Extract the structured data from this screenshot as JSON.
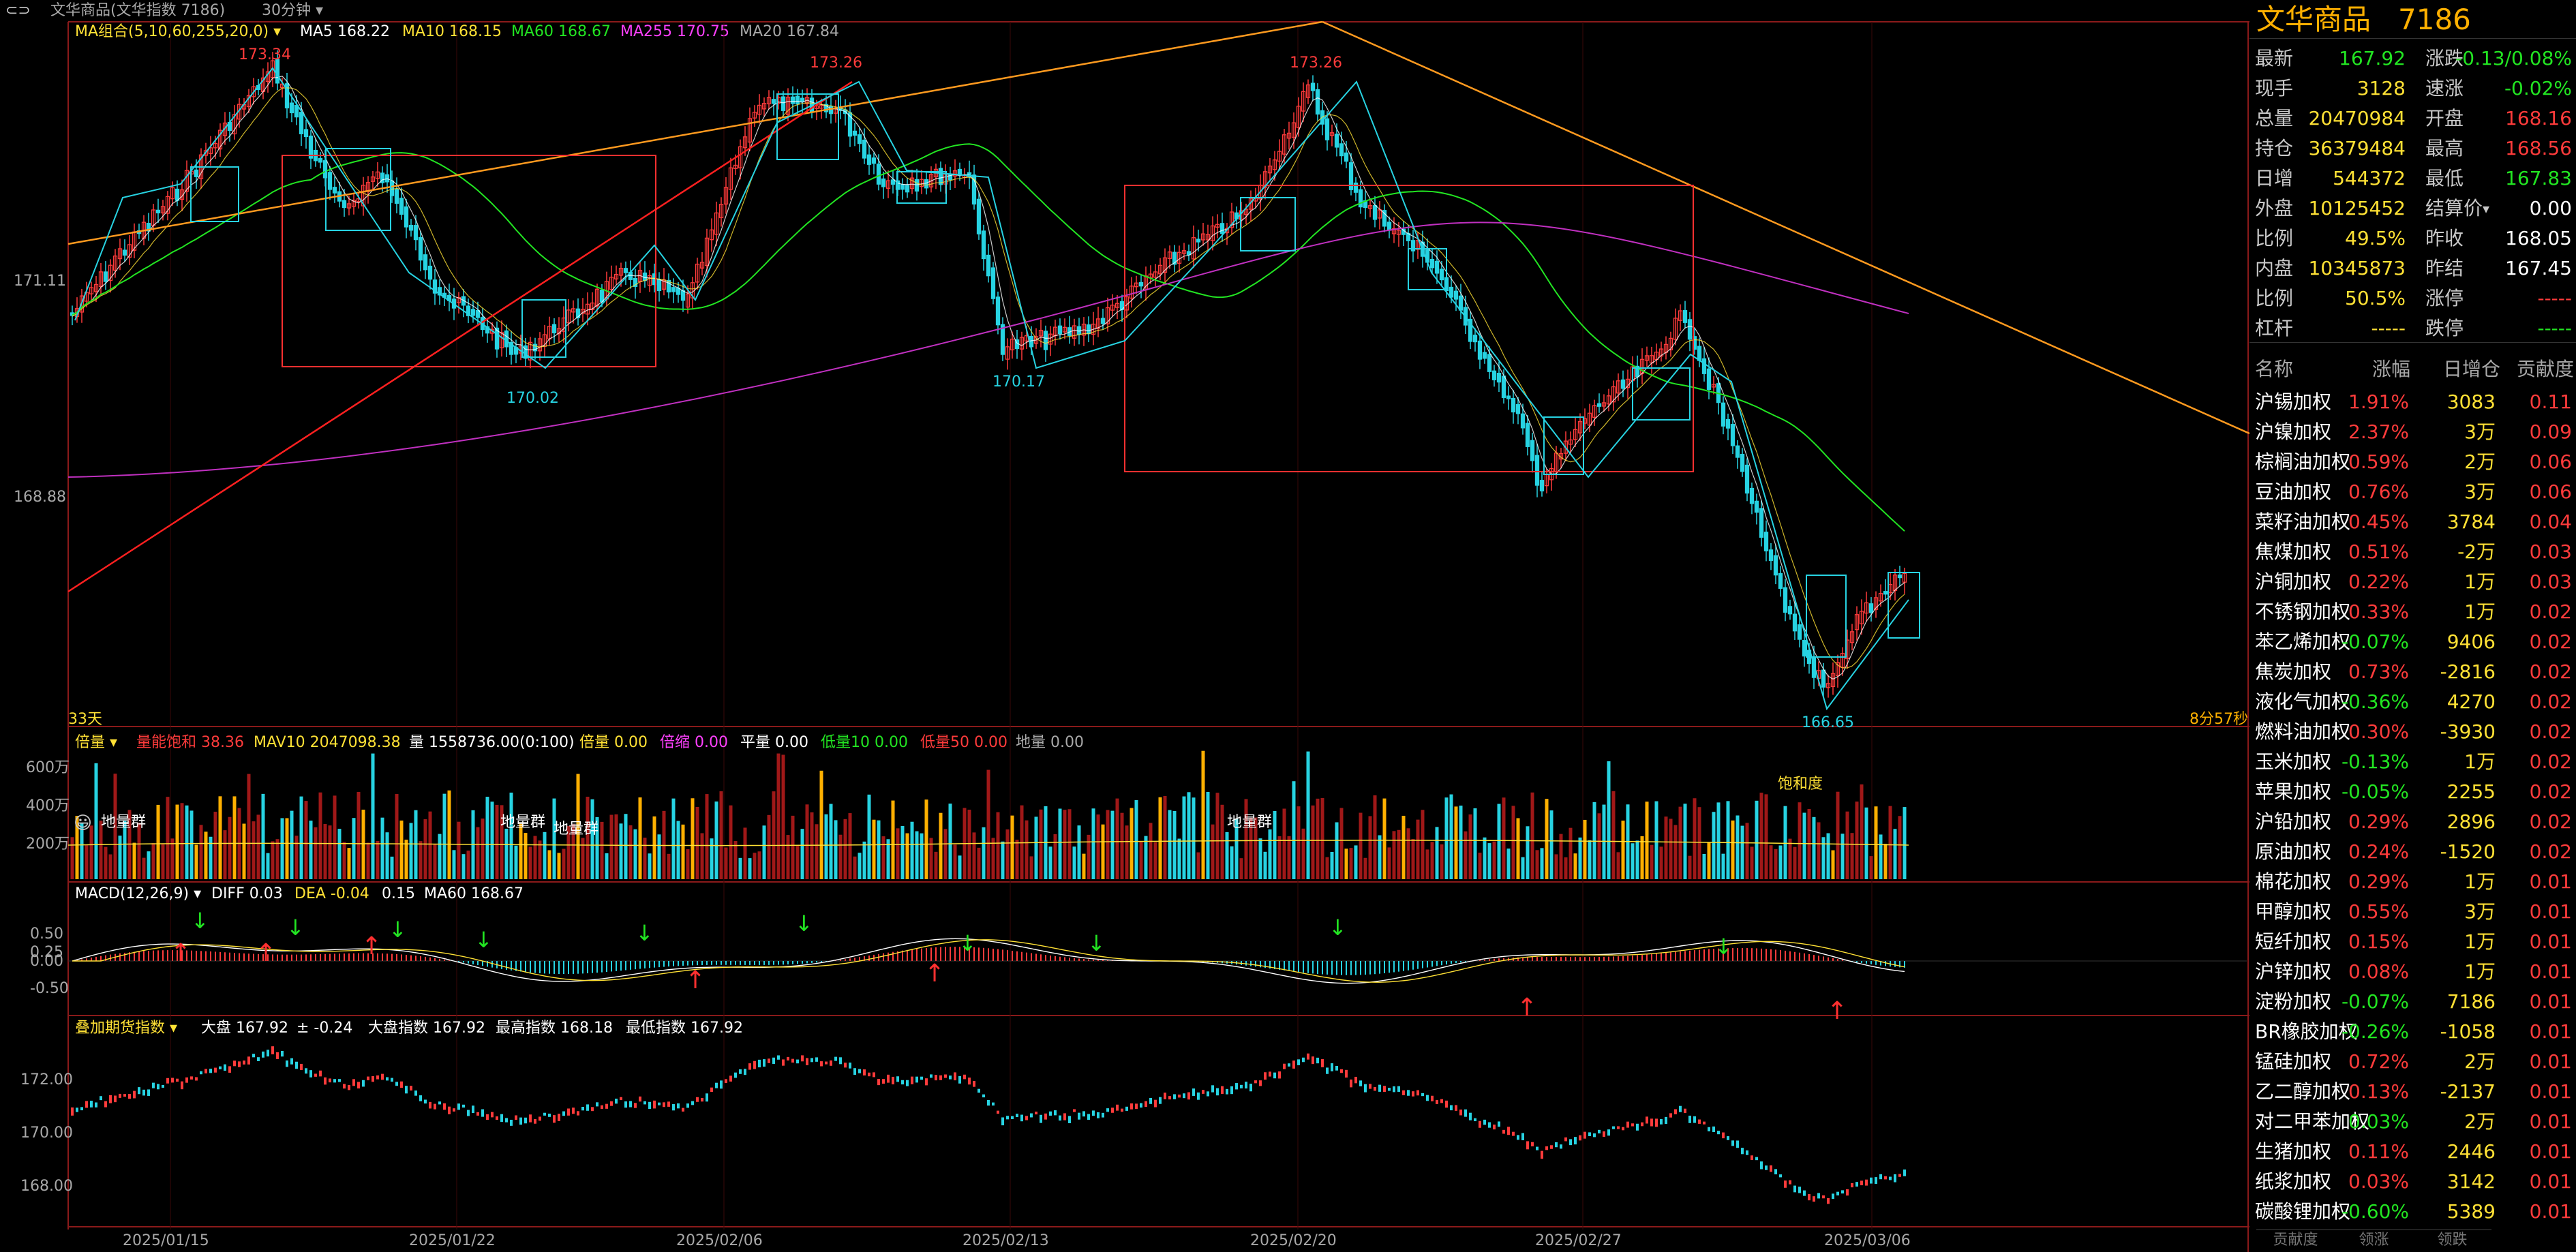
{
  "topbar": {
    "title": "文华商品(文华指数 7186)",
    "period": "30分钟",
    "ma_legend": {
      "label": "MA组合(5,10,60,255,20,0)",
      "ma5": "MA5 168.22",
      "ma10": "MA10 168.15",
      "ma60": "MA60 168.67",
      "ma255": "MA255 170.75",
      "ma20": "MA20 167.84"
    }
  },
  "main_chart": {
    "y_labels": [
      "171.11",
      "168.88"
    ],
    "annotations": {
      "h1": "173.34",
      "h2": "173.26",
      "h3": "173.26",
      "l1": "170.02",
      "l2": "170.17",
      "l3": "166.65"
    },
    "days_label": "33天",
    "countdown": "8分57秒"
  },
  "volume_panel": {
    "legend": {
      "name": "倍量",
      "vol_sat": "量能饱和 38.36",
      "mav10": "MAV10 2047098.38",
      "vol": "量 1558736.00(0:100)",
      "beiliang": "倍量 0.00",
      "beisuo": "倍缩 0.00",
      "pingliang": "平量 0.00",
      "dl10": "低量10 0.00",
      "dl50": "低量50 0.00",
      "diliang": "地量 0.00"
    },
    "y_labels": [
      "600万",
      "400万",
      "200万"
    ],
    "markers": [
      "地量群",
      "地量群",
      "地量群",
      "地量群",
      "饱和度"
    ]
  },
  "macd_panel": {
    "legend": {
      "name": "MACD(12,26,9)",
      "diff": "DIFF 0.03",
      "dea": "DEA -0.04",
      "macd": "0.15",
      "ma60": "MA60 168.67"
    },
    "y_labels": [
      "0.50",
      "0.25",
      "0.00",
      "-0.50"
    ]
  },
  "overlay_panel": {
    "legend": {
      "name": "叠加期货指数",
      "dapan": "大盘 167.92",
      "change": "± -0.24",
      "dapan_index": "大盘指数 167.92",
      "high": "最高指数 168.18",
      "low": "最低指数 167.92"
    },
    "y_labels": [
      "172.00",
      "170.00",
      "168.00"
    ]
  },
  "x_axis": [
    "2025/01/15",
    "2025/01/22",
    "2025/02/06",
    "2025/02/13",
    "2025/02/20",
    "2025/02/27",
    "2025/03/06"
  ],
  "quote": {
    "name": "文华商品",
    "code": "7186",
    "rows": [
      {
        "l1": "最新",
        "v1": "167.92",
        "c1": "green",
        "l2": "涨跌",
        "v2": "-0.13/0.08%",
        "c2": "green"
      },
      {
        "l1": "现手",
        "v1": "3128",
        "c1": "yellow",
        "l2": "速涨",
        "v2": "-0.02%",
        "c2": "green"
      },
      {
        "l1": "总量",
        "v1": "20470984",
        "c1": "yellow",
        "l2": "开盘",
        "v2": "168.16",
        "c2": "red"
      },
      {
        "l1": "持仓",
        "v1": "36379484",
        "c1": "yellow",
        "l2": "最高",
        "v2": "168.56",
        "c2": "red"
      },
      {
        "l1": "日增",
        "v1": "544372",
        "c1": "yellow",
        "l2": "最低",
        "v2": "167.83",
        "c2": "green"
      },
      {
        "l1": "外盘",
        "v1": "10125452",
        "c1": "yellow",
        "l2": "结算价",
        "v2": "0.00",
        "c2": "white"
      },
      {
        "l1": "比例",
        "v1": "49.5%",
        "c1": "yellow",
        "l2": "昨收",
        "v2": "168.05",
        "c2": "white"
      },
      {
        "l1": "内盘",
        "v1": "10345873",
        "c1": "yellow",
        "l2": "昨结",
        "v2": "167.45",
        "c2": "white"
      },
      {
        "l1": "比例",
        "v1": "50.5%",
        "c1": "yellow",
        "l2": "涨停",
        "v2": "-----",
        "c2": "red"
      },
      {
        "l1": "杠杆",
        "v1": "-----",
        "c1": "yellow",
        "l2": "跌停",
        "v2": "-----",
        "c2": "green"
      }
    ]
  },
  "components": {
    "headers": [
      "名称",
      "涨幅",
      "日增仓",
      "贡献度"
    ],
    "rows": [
      {
        "name": "沪锡加权",
        "chg": "1.91%",
        "chg_color": "red",
        "oi": "3083",
        "oi_color": "yellow",
        "contrib": "0.11",
        "contrib_color": "red"
      },
      {
        "name": "沪镍加权",
        "chg": "2.37%",
        "chg_color": "red",
        "oi": "3万",
        "oi_color": "yellow",
        "contrib": "0.09",
        "contrib_color": "red"
      },
      {
        "name": "棕榈油加权",
        "chg": "0.59%",
        "chg_color": "red",
        "oi": "2万",
        "oi_color": "yellow",
        "contrib": "0.06",
        "contrib_color": "red"
      },
      {
        "name": "豆油加权",
        "chg": "0.76%",
        "chg_color": "red",
        "oi": "3万",
        "oi_color": "yellow",
        "contrib": "0.06",
        "contrib_color": "red"
      },
      {
        "name": "菜籽油加权",
        "chg": "0.45%",
        "chg_color": "red",
        "oi": "3784",
        "oi_color": "yellow",
        "contrib": "0.04",
        "contrib_color": "red"
      },
      {
        "name": "焦煤加权",
        "chg": "0.51%",
        "chg_color": "red",
        "oi": "-2万",
        "oi_color": "yellow",
        "contrib": "0.03",
        "contrib_color": "red"
      },
      {
        "name": "沪铜加权",
        "chg": "0.22%",
        "chg_color": "red",
        "oi": "1万",
        "oi_color": "yellow",
        "contrib": "0.03",
        "contrib_color": "red"
      },
      {
        "name": "不锈钢加权",
        "chg": "0.33%",
        "chg_color": "red",
        "oi": "1万",
        "oi_color": "yellow",
        "contrib": "0.02",
        "contrib_color": "red"
      },
      {
        "name": "苯乙烯加权",
        "chg": "-0.07%",
        "chg_color": "green",
        "oi": "9406",
        "oi_color": "yellow",
        "contrib": "0.02",
        "contrib_color": "red"
      },
      {
        "name": "焦炭加权",
        "chg": "0.73%",
        "chg_color": "red",
        "oi": "-2816",
        "oi_color": "yellow",
        "contrib": "0.02",
        "contrib_color": "red"
      },
      {
        "name": "液化气加权",
        "chg": "-0.36%",
        "chg_color": "green",
        "oi": "4270",
        "oi_color": "yellow",
        "contrib": "0.02",
        "contrib_color": "red"
      },
      {
        "name": "燃料油加权",
        "chg": "0.30%",
        "chg_color": "red",
        "oi": "-3930",
        "oi_color": "yellow",
        "contrib": "0.02",
        "contrib_color": "red"
      },
      {
        "name": "玉米加权",
        "chg": "-0.13%",
        "chg_color": "green",
        "oi": "1万",
        "oi_color": "yellow",
        "contrib": "0.02",
        "contrib_color": "red"
      },
      {
        "name": "苹果加权",
        "chg": "-0.05%",
        "chg_color": "green",
        "oi": "2255",
        "oi_color": "yellow",
        "contrib": "0.02",
        "contrib_color": "red"
      },
      {
        "name": "沪铅加权",
        "chg": "0.29%",
        "chg_color": "red",
        "oi": "2896",
        "oi_color": "yellow",
        "contrib": "0.02",
        "contrib_color": "red"
      },
      {
        "name": "原油加权",
        "chg": "0.24%",
        "chg_color": "red",
        "oi": "-1520",
        "oi_color": "yellow",
        "contrib": "0.02",
        "contrib_color": "red"
      },
      {
        "name": "棉花加权",
        "chg": "0.29%",
        "chg_color": "red",
        "oi": "1万",
        "oi_color": "yellow",
        "contrib": "0.01",
        "contrib_color": "red"
      },
      {
        "name": "甲醇加权",
        "chg": "0.55%",
        "chg_color": "red",
        "oi": "3万",
        "oi_color": "yellow",
        "contrib": "0.01",
        "contrib_color": "red"
      },
      {
        "name": "短纤加权",
        "chg": "0.15%",
        "chg_color": "red",
        "oi": "1万",
        "oi_color": "yellow",
        "contrib": "0.01",
        "contrib_color": "red"
      },
      {
        "name": "沪锌加权",
        "chg": "0.08%",
        "chg_color": "red",
        "oi": "1万",
        "oi_color": "yellow",
        "contrib": "0.01",
        "contrib_color": "red"
      },
      {
        "name": "淀粉加权",
        "chg": "-0.07%",
        "chg_color": "green",
        "oi": "7186",
        "oi_color": "yellow",
        "contrib": "0.01",
        "contrib_color": "red"
      },
      {
        "name": "BR橡胶加权",
        "chg": "-0.26%",
        "chg_color": "green",
        "oi": "-1058",
        "oi_color": "yellow",
        "contrib": "0.01",
        "contrib_color": "red"
      },
      {
        "name": "锰硅加权",
        "chg": "0.72%",
        "chg_color": "red",
        "oi": "2万",
        "oi_color": "yellow",
        "contrib": "0.01",
        "contrib_color": "red"
      },
      {
        "name": "乙二醇加权",
        "chg": "0.13%",
        "chg_color": "red",
        "oi": "-2137",
        "oi_color": "yellow",
        "contrib": "0.01",
        "contrib_color": "red"
      },
      {
        "name": "对二甲苯加权",
        "chg": "0.03%",
        "chg_color": "green",
        "oi": "2万",
        "oi_color": "yellow",
        "contrib": "0.01",
        "contrib_color": "red"
      },
      {
        "name": "生猪加权",
        "chg": "0.11%",
        "chg_color": "red",
        "oi": "2446",
        "oi_color": "yellow",
        "contrib": "0.01",
        "contrib_color": "red"
      },
      {
        "name": "纸浆加权",
        "chg": "0.03%",
        "chg_color": "red",
        "oi": "3142",
        "oi_color": "yellow",
        "contrib": "0.01",
        "contrib_color": "red"
      },
      {
        "name": "碳酸锂加权",
        "chg": "-0.60%",
        "chg_color": "green",
        "oi": "5389",
        "oi_color": "yellow",
        "contrib": "0.01",
        "contrib_color": "red"
      }
    ]
  },
  "bottom_tabs": [
    "贡献度",
    "领涨",
    "领跌"
  ],
  "colors": {
    "up": "#ff3b3b",
    "down": "#27d3e2",
    "ma5": "#ffffff",
    "ma10": "#ffe135",
    "ma60": "#22e522",
    "ma255": "#c030c0",
    "trend_orange": "#ff9a1f",
    "trend_red": "#ff2020"
  }
}
